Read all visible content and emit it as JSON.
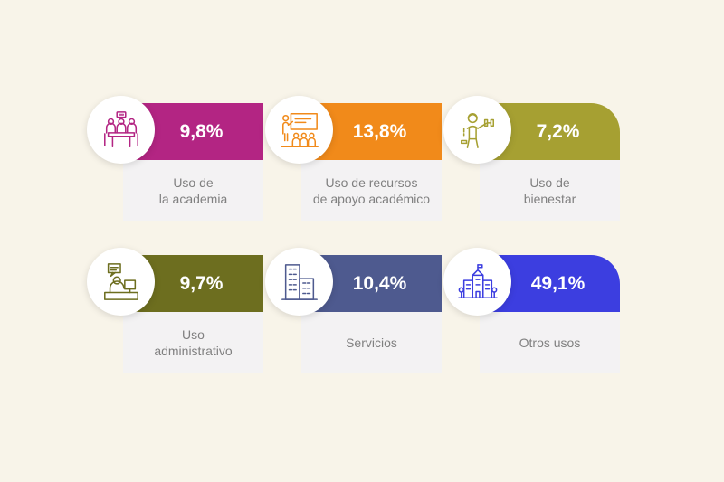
{
  "cards": [
    {
      "value": "9,8%",
      "label": "Uso de\nla academia",
      "color": "#b32583",
      "icon": "meeting-group-icon"
    },
    {
      "value": "13,8%",
      "label": "Uso de recursos\nde apoyo académico",
      "color": "#f18a1a",
      "icon": "classroom-presentation-icon"
    },
    {
      "value": "7,2%",
      "label": "Uso de\nbienestar",
      "color": "#a6a032",
      "icon": "fitness-person-icon"
    },
    {
      "value": "9,7%",
      "label": "Uso\nadministrativo",
      "color": "#6d6e1f",
      "icon": "office-desk-icon"
    },
    {
      "value": "10,4%",
      "label": "Servicios",
      "color": "#4e5a8f",
      "icon": "building-icon"
    },
    {
      "value": "49,1%",
      "label": "Otros usos",
      "color": "#3c3ee0",
      "icon": "campus-building-icon"
    }
  ]
}
